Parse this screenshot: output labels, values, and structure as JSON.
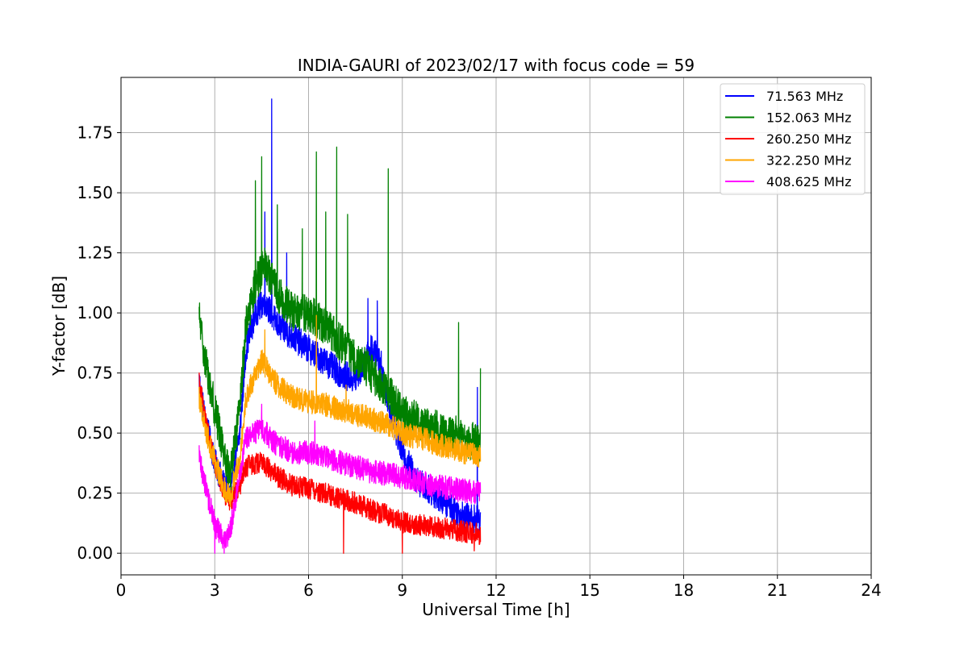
{
  "chart_data": {
    "type": "line",
    "title": "INDIA-GAURI of 2023/02/17 with focus code = 59",
    "xlabel": "Universal Time [h]",
    "ylabel": "Y-factor [dB]",
    "xlim": [
      0,
      24
    ],
    "ylim": [
      -0.09,
      1.98
    ],
    "xticks": [
      0,
      3,
      6,
      9,
      12,
      15,
      18,
      21,
      24
    ],
    "xtick_labels": [
      "0",
      "3",
      "6",
      "9",
      "12",
      "15",
      "18",
      "21",
      "24"
    ],
    "yticks": [
      0.0,
      0.25,
      0.5,
      0.75,
      1.0,
      1.25,
      1.5,
      1.75
    ],
    "ytick_labels": [
      "0.00",
      "0.25",
      "0.50",
      "0.75",
      "1.00",
      "1.25",
      "1.50",
      "1.75"
    ],
    "grid": true,
    "legend_position": "top-right",
    "series": [
      {
        "name": "  71.563 MHz",
        "color": "#0000ff",
        "noise": 0.06,
        "x": [
          2.5,
          2.7,
          3.0,
          3.3,
          3.5,
          3.8,
          4.0,
          4.3,
          4.6,
          4.8,
          5.0,
          5.5,
          6.0,
          6.5,
          7.0,
          7.5,
          7.8,
          8.0,
          8.3,
          8.6,
          9.0,
          9.5,
          10.0,
          10.5,
          11.0,
          11.5
        ],
        "y": [
          0.72,
          0.55,
          0.38,
          0.28,
          0.24,
          0.5,
          0.85,
          1.0,
          1.05,
          1.0,
          0.95,
          0.9,
          0.85,
          0.8,
          0.75,
          0.72,
          0.8,
          0.85,
          0.8,
          0.6,
          0.42,
          0.3,
          0.25,
          0.2,
          0.15,
          0.14
        ],
        "spikes": [
          [
            4.82,
            1.89
          ],
          [
            4.6,
            1.42
          ],
          [
            5.3,
            1.25
          ],
          [
            7.9,
            1.06
          ],
          [
            8.2,
            1.05
          ],
          [
            11.4,
            0.69
          ]
        ]
      },
      {
        "name": "152.063 MHz",
        "color": "#008000",
        "noise": 0.08,
        "x": [
          2.5,
          2.7,
          3.0,
          3.3,
          3.5,
          3.8,
          4.0,
          4.3,
          4.6,
          4.8,
          5.0,
          5.5,
          6.0,
          6.5,
          7.0,
          7.5,
          8.0,
          8.5,
          9.0,
          9.5,
          10.0,
          10.5,
          11.0,
          11.5
        ],
        "y": [
          0.98,
          0.8,
          0.6,
          0.42,
          0.32,
          0.6,
          0.95,
          1.12,
          1.2,
          1.15,
          1.08,
          1.0,
          1.0,
          0.95,
          0.88,
          0.82,
          0.75,
          0.68,
          0.58,
          0.55,
          0.52,
          0.5,
          0.48,
          0.45
        ],
        "spikes": [
          [
            4.5,
            1.65
          ],
          [
            5.0,
            1.45
          ],
          [
            5.8,
            1.35
          ],
          [
            6.25,
            1.67
          ],
          [
            6.55,
            1.42
          ],
          [
            6.9,
            1.69
          ],
          [
            7.25,
            1.41
          ],
          [
            8.55,
            1.6
          ],
          [
            10.8,
            0.96
          ],
          [
            4.3,
            1.55
          ],
          [
            11.5,
            0.77
          ]
        ]
      },
      {
        "name": "260.250 MHz",
        "color": "#ff0000",
        "noise": 0.045,
        "x": [
          2.5,
          2.7,
          3.0,
          3.3,
          3.5,
          3.8,
          4.0,
          4.5,
          5.0,
          5.5,
          6.0,
          6.5,
          7.0,
          7.5,
          8.0,
          8.5,
          9.0,
          9.5,
          10.0,
          10.5,
          11.0,
          11.5
        ],
        "y": [
          0.72,
          0.55,
          0.38,
          0.25,
          0.22,
          0.28,
          0.36,
          0.38,
          0.32,
          0.28,
          0.27,
          0.25,
          0.23,
          0.21,
          0.18,
          0.16,
          0.13,
          0.12,
          0.11,
          0.1,
          0.09,
          0.08
        ],
        "spikes": [
          [
            7.12,
            0.0
          ],
          [
            9.0,
            0.0
          ],
          [
            11.3,
            0.01
          ]
        ]
      },
      {
        "name": "322.250 MHz",
        "color": "#ffa500",
        "noise": 0.05,
        "x": [
          2.5,
          2.7,
          3.0,
          3.3,
          3.5,
          3.8,
          4.0,
          4.5,
          5.0,
          5.5,
          6.0,
          6.5,
          7.0,
          7.5,
          8.0,
          8.5,
          9.0,
          9.5,
          10.0,
          10.5,
          11.0,
          11.5
        ],
        "y": [
          0.65,
          0.52,
          0.38,
          0.27,
          0.24,
          0.4,
          0.65,
          0.8,
          0.7,
          0.65,
          0.63,
          0.62,
          0.6,
          0.58,
          0.56,
          0.54,
          0.5,
          0.48,
          0.46,
          0.44,
          0.42,
          0.4
        ],
        "spikes": [
          [
            6.25,
            0.99
          ],
          [
            4.6,
            0.93
          ],
          [
            7.2,
            0.7
          ]
        ]
      },
      {
        "name": "408.625 MHz",
        "color": "#ff00ff",
        "noise": 0.05,
        "x": [
          2.5,
          2.7,
          3.0,
          3.3,
          3.5,
          3.8,
          4.0,
          4.5,
          5.0,
          5.5,
          6.0,
          6.5,
          7.0,
          7.5,
          8.0,
          8.5,
          9.0,
          9.5,
          10.0,
          10.5,
          11.0,
          11.5
        ],
        "y": [
          0.4,
          0.28,
          0.12,
          0.05,
          0.1,
          0.32,
          0.48,
          0.52,
          0.45,
          0.42,
          0.42,
          0.4,
          0.38,
          0.36,
          0.34,
          0.33,
          0.32,
          0.3,
          0.28,
          0.27,
          0.26,
          0.25
        ],
        "spikes": [
          [
            4.5,
            0.62
          ],
          [
            6.2,
            0.55
          ],
          [
            3.0,
            0.0
          ],
          [
            3.3,
            0.0
          ]
        ]
      }
    ]
  }
}
